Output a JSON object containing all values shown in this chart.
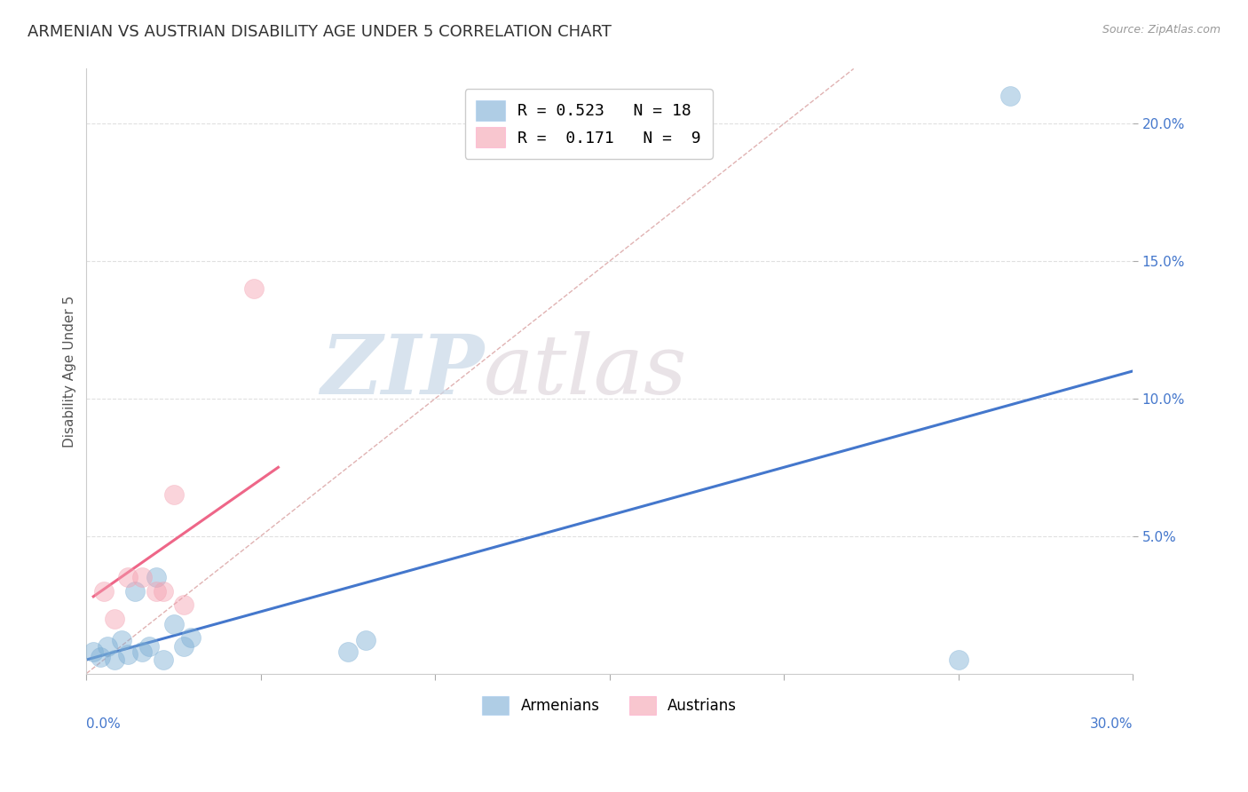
{
  "title": "ARMENIAN VS AUSTRIAN DISABILITY AGE UNDER 5 CORRELATION CHART",
  "source": "Source: ZipAtlas.com",
  "ylabel": "Disability Age Under 5",
  "xmin": 0.0,
  "xmax": 0.3,
  "ymin": 0.0,
  "ymax": 0.22,
  "ytick_vals": [
    0.05,
    0.1,
    0.15,
    0.2
  ],
  "ytick_labels": [
    "5.0%",
    "10.0%",
    "15.0%",
    "20.0%"
  ],
  "legend1_label": "R = 0.523   N = 18",
  "legend2_label": "R =  0.171   N =  9",
  "armenian_color": "#7aadd4",
  "austrian_color": "#f4a0b0",
  "watermark_zip": "ZIP",
  "watermark_atlas": "atlas",
  "armenians_x": [
    0.002,
    0.004,
    0.006,
    0.008,
    0.01,
    0.012,
    0.014,
    0.016,
    0.018,
    0.02,
    0.022,
    0.025,
    0.028,
    0.03,
    0.075,
    0.08,
    0.25,
    0.265
  ],
  "armenians_y": [
    0.008,
    0.006,
    0.01,
    0.005,
    0.012,
    0.007,
    0.03,
    0.008,
    0.01,
    0.035,
    0.005,
    0.018,
    0.01,
    0.013,
    0.008,
    0.012,
    0.005,
    0.21
  ],
  "austrians_x": [
    0.005,
    0.008,
    0.012,
    0.016,
    0.02,
    0.022,
    0.025,
    0.028,
    0.048
  ],
  "austrians_y": [
    0.03,
    0.02,
    0.035,
    0.035,
    0.03,
    0.03,
    0.065,
    0.025,
    0.14
  ],
  "blue_line_x": [
    0.0,
    0.3
  ],
  "blue_line_y": [
    0.005,
    0.11
  ],
  "pink_line_x": [
    0.002,
    0.055
  ],
  "pink_line_y": [
    0.028,
    0.075
  ],
  "diag_line_x": [
    0.0,
    0.22
  ],
  "diag_line_y": [
    0.0,
    0.22
  ],
  "bg_color": "#ffffff",
  "grid_color": "#e0e0e0",
  "title_fontsize": 13,
  "axis_label_fontsize": 11,
  "tick_fontsize": 11,
  "marker_size": 250
}
